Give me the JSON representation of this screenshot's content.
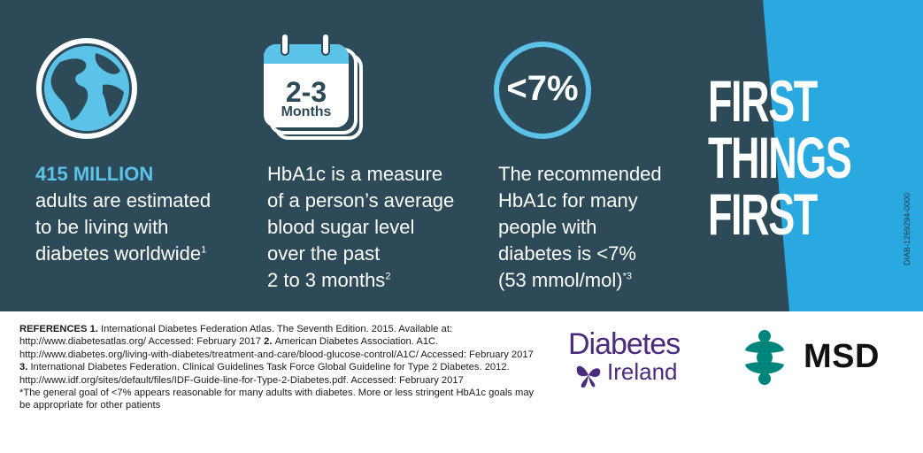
{
  "stats": [
    {
      "highlight": "415 MILLION",
      "lines": [
        "adults are estimated",
        "to be living with",
        "diabetes worldwide"
      ],
      "sup": "1"
    },
    {
      "lines": [
        "HbA1c is a measure",
        "of a person’s average",
        "blood sugar level",
        "over the past",
        "2 to 3 months"
      ],
      "sup": "2"
    },
    {
      "lines": [
        "The recommended",
        "HbA1c for many",
        "people with",
        "diabetes is <7%",
        "(53 mmol/mol)"
      ],
      "sup": "*3"
    }
  ],
  "icons": {
    "globe": "globe-icon",
    "calendar": "calendar-icon",
    "calendar_number": "2-3",
    "calendar_unit": "Months",
    "target": "percent-circle-icon",
    "target_text": "<7%"
  },
  "headline": [
    "FIRST",
    "THINGS",
    "FIRST"
  ],
  "code": "DIAB-1269294-0000",
  "references": {
    "heading": "REFERENCES",
    "items": [
      {
        "num": "1.",
        "text": "International Diabetes Federation Atlas. The Seventh Edition. 2015. Available at: http://www.diabetesatlas.org/ Accessed: February 2017"
      },
      {
        "num": "2.",
        "text": "American Diabetes Association. A1C. http://www.diabetes.org/living-with-diabetes/treatment-and-care/blood-glucose-control/A1C/ Accessed: February 2017"
      },
      {
        "num": "3.",
        "text": "International Diabetes Federation. Clinical Guidelines Task Force Global Guideline for Type 2 Diabetes. 2012. http://www.idf.org/sites/default/files/IDF-Guide-line-for-Type-2-Diabetes.pdf. Accessed: February 2017"
      }
    ],
    "footnote": "*The general goal of <7% appears reasonable for many adults with diabetes. More or less stringent HbA1c goals may be appropriate for other patients"
  },
  "logos": {
    "diabetes_ireland": {
      "name": "Diabetes",
      "sub": "Ireland"
    },
    "msd": {
      "name": "MSD"
    }
  },
  "colors": {
    "panel": "#2d4a59",
    "accent": "#5cc3e8",
    "band": "#2aa8e0",
    "purple": "#4b2b7d",
    "teal": "#00857c"
  }
}
